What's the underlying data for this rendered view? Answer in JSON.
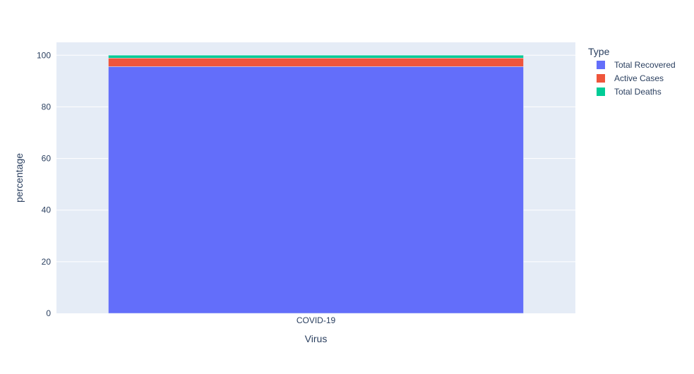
{
  "chart_data": {
    "type": "bar",
    "barmode": "stack",
    "categories": [
      "COVID-19"
    ],
    "series": [
      {
        "name": "Total Recovered",
        "values": [
          95.6
        ],
        "color": "#636efa"
      },
      {
        "name": "Active Cases",
        "values": [
          3.3
        ],
        "color": "#ef553b"
      },
      {
        "name": "Total Deaths",
        "values": [
          1.1
        ],
        "color": "#00cc96"
      }
    ],
    "xlabel": "Virus",
    "ylabel": "percentage",
    "ylim": [
      0,
      105
    ],
    "yticks": [
      0,
      20,
      40,
      60,
      80,
      100
    ],
    "grid": true,
    "legend": {
      "title": "Type",
      "placement": "right"
    },
    "colors": {
      "plot_background": "#e5ecf6",
      "gridline": "#ffffff",
      "text": "#2a3f5f"
    }
  }
}
